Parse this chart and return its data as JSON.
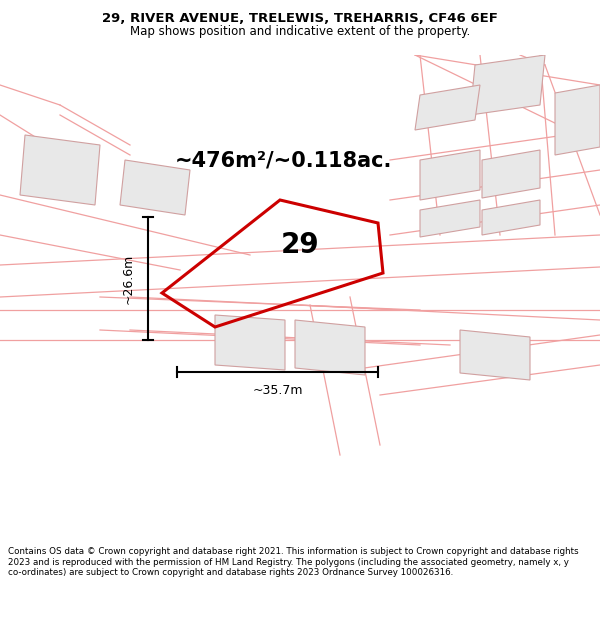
{
  "title_line1": "29, RIVER AVENUE, TRELEWIS, TREHARRIS, CF46 6EF",
  "title_line2": "Map shows position and indicative extent of the property.",
  "area_text": "~476m²/~0.118ac.",
  "label_29": "29",
  "dim_width": "~35.7m",
  "dim_height": "~26.6m",
  "footer": "Contains OS data © Crown copyright and database right 2021. This information is subject to Crown copyright and database rights 2023 and is reproduced with the permission of HM Land Registry. The polygons (including the associated geometry, namely x, y co-ordinates) are subject to Crown copyright and database rights 2023 Ordnance Survey 100026316.",
  "bg_color": "#faf8f8",
  "plot_color": "#cc0000",
  "outline_color": "#f0a0a0",
  "building_fill": "#e8e8e8",
  "building_outline": "#d0a0a0",
  "title_fontsize": 9.5,
  "subtitle_fontsize": 8.5,
  "area_fontsize": 15,
  "label_fontsize": 20,
  "dim_fontsize": 9,
  "footer_fontsize": 6.3
}
